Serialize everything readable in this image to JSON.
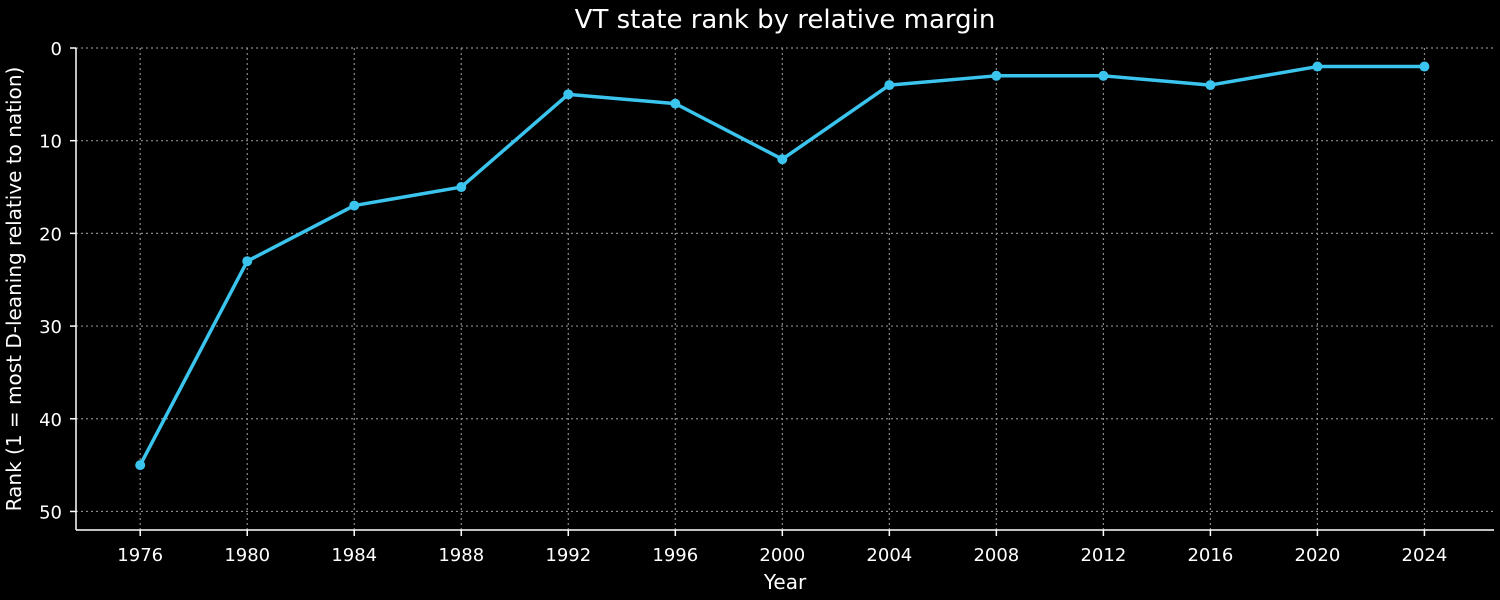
{
  "chart_data": {
    "type": "line",
    "title": "VT state rank by relative margin",
    "xlabel": "Year",
    "ylabel": "Rank (1 = most D-leaning relative to nation)",
    "x": [
      1976,
      1980,
      1984,
      1988,
      1992,
      1996,
      2000,
      2004,
      2008,
      2012,
      2016,
      2020,
      2024
    ],
    "series": [
      {
        "values": [
          45,
          23,
          17,
          15,
          5,
          6,
          12,
          4,
          3,
          3,
          4,
          2,
          2
        ]
      }
    ],
    "xticks": [
      "1976",
      "1980",
      "1984",
      "1988",
      "1992",
      "1996",
      "2000",
      "2004",
      "2008",
      "2012",
      "2016",
      "2020",
      "2024"
    ],
    "yticks": [
      "0",
      "10",
      "20",
      "30",
      "40",
      "50"
    ],
    "ylim": [
      0,
      52
    ],
    "y_inverted": true,
    "xlim": [
      1973.6,
      2026.6
    ],
    "grid": true,
    "line_color": "#3bc4ee"
  }
}
